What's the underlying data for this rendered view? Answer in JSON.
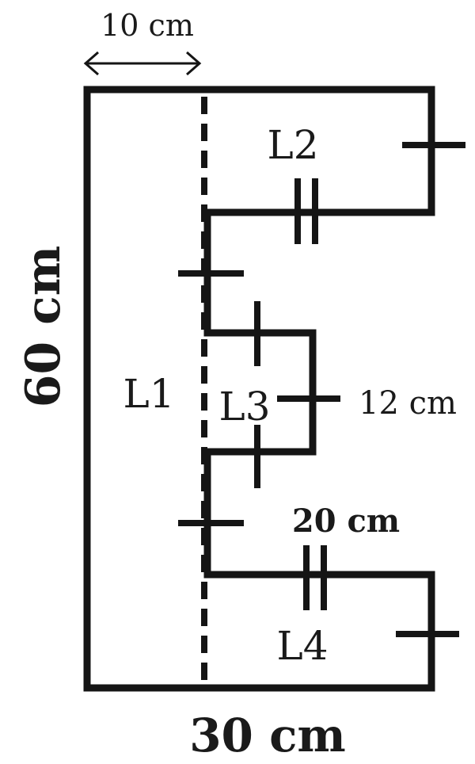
{
  "labels": {
    "top_dim": "10 cm",
    "left_dim": "60 cm",
    "bottom_dim": "30 cm",
    "l3_dim": "12 cm",
    "l4_dim": "20 cm",
    "section_l1": "L1",
    "section_l2": "L2",
    "section_l3": "L3",
    "section_l4": "L4"
  }
}
